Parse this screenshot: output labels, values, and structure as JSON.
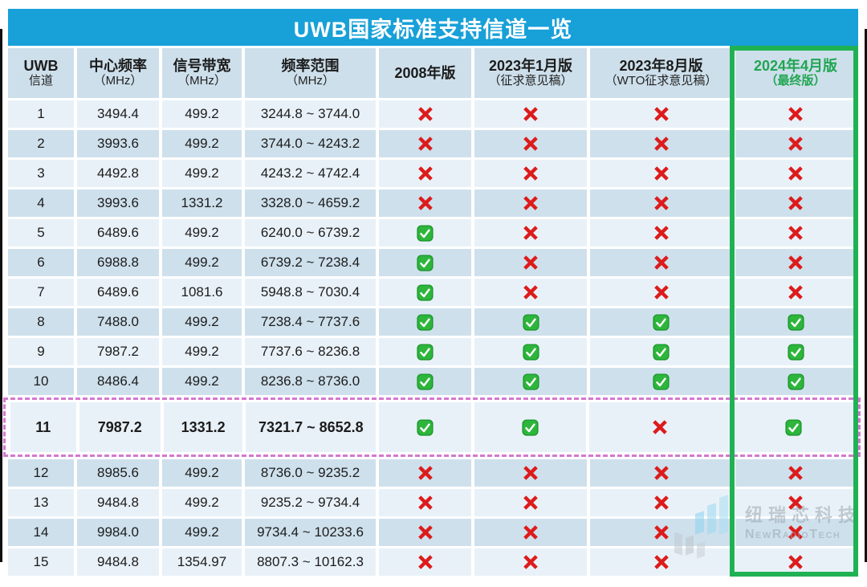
{
  "title": "UWB国家标准支持信道一览",
  "columns": [
    {
      "line1": "UWB",
      "line2": "信道"
    },
    {
      "line1": "中心频率",
      "line2": "（MHz）"
    },
    {
      "line1": "信号带宽",
      "line2": "（MHz）"
    },
    {
      "line1": "频率范围",
      "line2": "（MHz）"
    },
    {
      "line1": "2008年版",
      "line2": ""
    },
    {
      "line1": "2023年1月版",
      "line2": "（征求意见稿）"
    },
    {
      "line1": "2023年8月版",
      "line2": "（WTO征求意见稿）"
    },
    {
      "line1": "2024年4月版",
      "line2": "（最终版）"
    }
  ],
  "rows": [
    {
      "channel": "1",
      "center_freq": "3494.4",
      "bandwidth": "499.2",
      "range": "3244.8 ~ 3744.0",
      "marks": [
        "no",
        "no",
        "no",
        "no"
      ],
      "highlight": false
    },
    {
      "channel": "2",
      "center_freq": "3993.6",
      "bandwidth": "499.2",
      "range": "3744.0 ~ 4243.2",
      "marks": [
        "no",
        "no",
        "no",
        "no"
      ],
      "highlight": false
    },
    {
      "channel": "3",
      "center_freq": "4492.8",
      "bandwidth": "499.2",
      "range": "4243.2 ~ 4742.4",
      "marks": [
        "no",
        "no",
        "no",
        "no"
      ],
      "highlight": false
    },
    {
      "channel": "4",
      "center_freq": "3993.6",
      "bandwidth": "1331.2",
      "range": "3328.0 ~ 4659.2",
      "marks": [
        "no",
        "no",
        "no",
        "no"
      ],
      "highlight": false
    },
    {
      "channel": "5",
      "center_freq": "6489.6",
      "bandwidth": "499.2",
      "range": "6240.0 ~ 6739.2",
      "marks": [
        "yes",
        "no",
        "no",
        "no"
      ],
      "highlight": false
    },
    {
      "channel": "6",
      "center_freq": "6988.8",
      "bandwidth": "499.2",
      "range": "6739.2 ~ 7238.4",
      "marks": [
        "yes",
        "no",
        "no",
        "no"
      ],
      "highlight": false
    },
    {
      "channel": "7",
      "center_freq": "6489.6",
      "bandwidth": "1081.6",
      "range": "5948.8 ~ 7030.4",
      "marks": [
        "yes",
        "no",
        "no",
        "no"
      ],
      "highlight": false
    },
    {
      "channel": "8",
      "center_freq": "7488.0",
      "bandwidth": "499.2",
      "range": "7238.4 ~ 7737.6",
      "marks": [
        "yes",
        "yes",
        "yes",
        "yes"
      ],
      "highlight": false
    },
    {
      "channel": "9",
      "center_freq": "7987.2",
      "bandwidth": "499.2",
      "range": "7737.6 ~ 8236.8",
      "marks": [
        "yes",
        "yes",
        "yes",
        "yes"
      ],
      "highlight": false
    },
    {
      "channel": "10",
      "center_freq": "8486.4",
      "bandwidth": "499.2",
      "range": "8236.8 ~ 8736.0",
      "marks": [
        "yes",
        "yes",
        "yes",
        "yes"
      ],
      "highlight": false
    },
    {
      "channel": "11",
      "center_freq": "7987.2",
      "bandwidth": "1331.2",
      "range": "7321.7 ~ 8652.8",
      "marks": [
        "yes",
        "yes",
        "no",
        "yes"
      ],
      "highlight": true
    },
    {
      "channel": "12",
      "center_freq": "8985.6",
      "bandwidth": "499.2",
      "range": "8736.0 ~ 9235.2",
      "marks": [
        "no",
        "no",
        "no",
        "no"
      ],
      "highlight": false
    },
    {
      "channel": "13",
      "center_freq": "9484.8",
      "bandwidth": "499.2",
      "range": "9235.2 ~ 9734.4",
      "marks": [
        "no",
        "no",
        "no",
        "no"
      ],
      "highlight": false
    },
    {
      "channel": "14",
      "center_freq": "9984.0",
      "bandwidth": "499.2",
      "range": "9734.4 ~ 10233.6",
      "marks": [
        "no",
        "no",
        "no",
        "no"
      ],
      "highlight": false
    },
    {
      "channel": "15",
      "center_freq": "9484.8",
      "bandwidth": "1354.97",
      "range": "8807.3 ~ 10162.3",
      "marks": [
        "no",
        "no",
        "no",
        "no"
      ],
      "highlight": false
    }
  ],
  "icons": {
    "pass": "green-check-icon",
    "fail": "red-cross-icon"
  },
  "watermark": {
    "cn": "纽瑞芯科技",
    "en": "NewRadioTech"
  },
  "colors": {
    "title_bar_blue": "#18a0d8",
    "header_bg": "#cddfeb",
    "row_light": "#e9f1f8",
    "row_dark": "#cee0ec",
    "final_column_green": "#1fb254",
    "final_header_text_green": "#21a551",
    "highlight_dashed_pink": "#d478ce",
    "cross_red": "#dd1b1b",
    "check_green": "#2eb53c"
  }
}
